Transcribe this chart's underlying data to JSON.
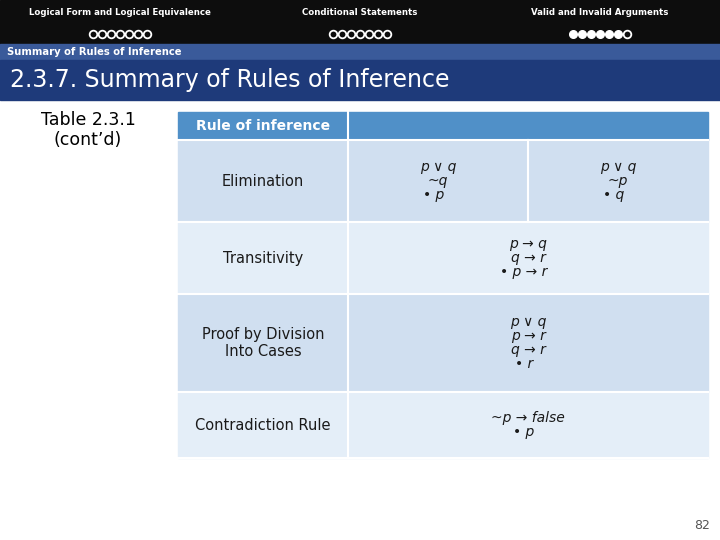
{
  "bg_color": "#ffffff",
  "header_bar_color": "#0d0d0d",
  "header_text_color": "#ffffff",
  "section_bar_color": "#3a5a9a",
  "section_text_color": "#ffffff",
  "title_bar_color": "#1e3a7a",
  "title_text_color": "#ffffff",
  "table_header_color": "#5090c8",
  "table_header_text_color": "#ffffff",
  "table_row_odd_color": "#d0dff0",
  "table_row_even_color": "#e4eef8",
  "table_text_color": "#1a1a1a",
  "left_label_color": "#000000",
  "page_num_color": "#555555",
  "top_sections": [
    {
      "label": "Logical Form and Logical Equivalence",
      "dots": 7,
      "filled": 0
    },
    {
      "label": "Conditional Statements",
      "dots": 7,
      "filled": 0
    },
    {
      "label": "Valid and Invalid Arguments",
      "dots": 7,
      "filled": 6
    }
  ],
  "section_label": "Summary of Rules of Inference",
  "main_title": "2.3.7. Summary of Rules of Inference",
  "left_label_line1": "Table 2.3.1",
  "left_label_line2": "(cont’d)",
  "table_col_header": "Rule of inference",
  "rows": [
    {
      "name": "Elimination",
      "col2": "p ∨ q\n~q\n• p",
      "col3": "p ∨ q\n~p\n• q"
    },
    {
      "name": "Transitivity",
      "col2": "p → q\nq → r\n• p → r",
      "col3": ""
    },
    {
      "name": "Proof by Division\nInto Cases",
      "col2": "p ∨ q\np → r\nq → r\n• r",
      "col3": ""
    },
    {
      "name": "Contradiction Rule",
      "col2": "~p → false\n• p",
      "col3": ""
    }
  ],
  "page_number": "82"
}
